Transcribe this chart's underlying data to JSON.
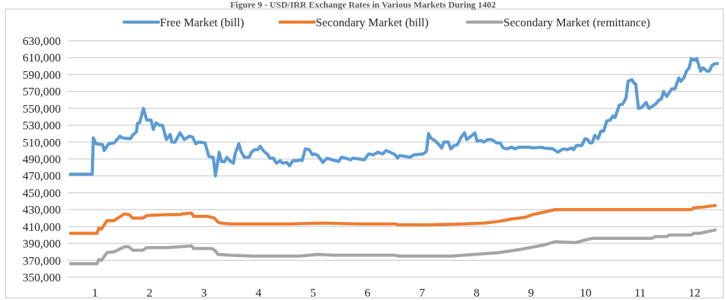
{
  "chart_data": {
    "type": "line",
    "title": "Figure 9 - USD/IRR Exchange Rates in Various Markets During 1402",
    "legend": "top",
    "grid": "y",
    "xlim": [
      0.5,
      12.5
    ],
    "xticks": [
      1,
      2,
      3,
      4,
      5,
      6,
      7,
      8,
      9,
      10,
      11,
      12
    ],
    "ylim": [
      350000,
      630000
    ],
    "yticks": [
      {
        "value": 350000,
        "label": "350,000"
      },
      {
        "value": 370000,
        "label": "370,000"
      },
      {
        "value": 390000,
        "label": "390,000"
      },
      {
        "value": 410000,
        "label": "410,000"
      },
      {
        "value": 430000,
        "label": "430,000"
      },
      {
        "value": 450000,
        "label": "450,000"
      },
      {
        "value": 470000,
        "label": "470,000"
      },
      {
        "value": 490000,
        "label": "490,000"
      },
      {
        "value": 510000,
        "label": "510,000"
      },
      {
        "value": 530000,
        "label": "530,000"
      },
      {
        "value": 550000,
        "label": "550,000"
      },
      {
        "value": 570000,
        "label": "570,000"
      },
      {
        "value": 590000,
        "label": "590,000"
      },
      {
        "value": 610000,
        "label": "610,000"
      },
      {
        "value": 630000,
        "label": "630,000"
      }
    ],
    "series": [
      {
        "name": "Free Market (bill)",
        "color": "#5b9bd5",
        "x": [
          0.55,
          0.95,
          0.97,
          1.02,
          1.14,
          1.17,
          1.25,
          1.35,
          1.46,
          1.5,
          1.65,
          1.69,
          1.76,
          1.78,
          1.82,
          1.89,
          1.95,
          2.03,
          2.07,
          2.12,
          2.18,
          2.24,
          2.31,
          2.38,
          2.41,
          2.47,
          2.56,
          2.64,
          2.73,
          2.79,
          2.85,
          2.9,
          3.02,
          3.09,
          3.17,
          3.21,
          3.28,
          3.32,
          3.38,
          3.42,
          3.49,
          3.54,
          3.57,
          3.64,
          3.68,
          3.74,
          3.83,
          3.87,
          3.93,
          3.99,
          4.03,
          4.1,
          4.16,
          4.21,
          4.27,
          4.33,
          4.4,
          4.44,
          4.52,
          4.57,
          4.63,
          4.71,
          4.78,
          4.8,
          4.86,
          4.93,
          4.99,
          5.03,
          5.09,
          5.18,
          5.26,
          5.35,
          5.47,
          5.52,
          5.6,
          5.69,
          5.73,
          5.85,
          5.94,
          6.02,
          6.11,
          6.19,
          6.28,
          6.34,
          6.42,
          6.51,
          6.55,
          6.59,
          6.7,
          6.78,
          6.85,
          7.02,
          7.08,
          7.12,
          7.16,
          7.25,
          7.31,
          7.36,
          7.4,
          7.48,
          7.53,
          7.59,
          7.65,
          7.71,
          7.78,
          7.82,
          7.9,
          7.97,
          8.01,
          8.07,
          8.14,
          8.2,
          8.28,
          8.37,
          8.43,
          8.49,
          8.56,
          8.64,
          8.71,
          8.77,
          8.98,
          9.02,
          9.19,
          9.23,
          9.4,
          9.49,
          9.59,
          9.66,
          9.74,
          9.78,
          9.83,
          9.93,
          9.99,
          10.04,
          10.08,
          10.12,
          10.17,
          10.23,
          10.28,
          10.33,
          10.39,
          10.45,
          10.5,
          10.54,
          10.62,
          10.68,
          10.74,
          10.78,
          10.85,
          10.9,
          10.92,
          10.97,
          11.03,
          11.11,
          11.16,
          11.24,
          11.3,
          11.35,
          11.39,
          11.43,
          11.49,
          11.58,
          11.64,
          11.71,
          11.75,
          11.81,
          11.85,
          11.9,
          11.94,
          11.99,
          12.04,
          12.11,
          12.15,
          12.23,
          12.27,
          12.32,
          12.38,
          12.42
        ],
        "values": [
          472000,
          472000,
          515000,
          508000,
          507000,
          500000,
          508000,
          509000,
          517000,
          515000,
          514000,
          518000,
          522000,
          532000,
          533000,
          550000,
          536000,
          536000,
          525000,
          533000,
          530000,
          530000,
          513000,
          519000,
          510000,
          510000,
          521000,
          513000,
          517000,
          516000,
          508000,
          510000,
          509000,
          493000,
          492000,
          470000,
          498000,
          487000,
          487000,
          492000,
          487000,
          485000,
          496000,
          508000,
          499000,
          492000,
          492000,
          498000,
          501000,
          501000,
          505000,
          499000,
          496000,
          491000,
          491000,
          485000,
          488000,
          485000,
          486000,
          482000,
          488000,
          488000,
          489000,
          488000,
          502000,
          501000,
          495000,
          496000,
          494000,
          486000,
          491000,
          489000,
          487000,
          492000,
          491000,
          489000,
          491000,
          490000,
          489000,
          496000,
          495000,
          498000,
          496000,
          500000,
          498000,
          495000,
          491000,
          494000,
          493000,
          492000,
          495000,
          496000,
          499000,
          520000,
          515000,
          511000,
          507000,
          503000,
          510000,
          510000,
          502000,
          506000,
          507000,
          515000,
          521000,
          513000,
          517000,
          521000,
          511000,
          512000,
          510000,
          513000,
          513000,
          509000,
          509000,
          503000,
          502000,
          504000,
          502000,
          504000,
          504000,
          503000,
          504000,
          503000,
          502000,
          498000,
          502000,
          501000,
          503000,
          501000,
          506000,
          506000,
          514000,
          513000,
          509000,
          509000,
          518000,
          514000,
          523000,
          523000,
          535000,
          536000,
          541000,
          539000,
          554000,
          555000,
          562000,
          582000,
          584000,
          579000,
          579000,
          550000,
          551000,
          557000,
          550000,
          553000,
          556000,
          560000,
          561000,
          570000,
          564000,
          573000,
          573000,
          586000,
          582000,
          587000,
          594000,
          598000,
          609000,
          607000,
          609000,
          594000,
          598000,
          594000,
          594000,
          601000,
          603000,
          603000
        ]
      },
      {
        "name": "Secondary Market (bill)",
        "color": "#ed7d31",
        "x": [
          0.55,
          1.04,
          1.07,
          1.12,
          1.22,
          1.35,
          1.54,
          1.63,
          1.69,
          1.88,
          1.95,
          2.31,
          2.56,
          2.6,
          2.77,
          2.81,
          3.07,
          3.19,
          3.26,
          3.32,
          3.48,
          3.7,
          4.55,
          5.18,
          5.85,
          6.51,
          6.57,
          7.12,
          7.75,
          8.14,
          8.4,
          8.65,
          8.9,
          9.02,
          9.23,
          9.44,
          9.57,
          11.94,
          11.98,
          12.15,
          12.38
        ],
        "values": [
          402000,
          402000,
          408000,
          407000,
          417000,
          417000,
          425000,
          424000,
          420000,
          420000,
          423000,
          424000,
          424000,
          425000,
          426000,
          422000,
          422000,
          420000,
          415000,
          414000,
          413000,
          413000,
          413000,
          414000,
          413000,
          413000,
          412000,
          412000,
          413000,
          414000,
          416000,
          419000,
          421000,
          424000,
          427000,
          430000,
          430000,
          430000,
          432000,
          433000,
          435000
        ]
      },
      {
        "name": "Secondary Market (remittance)",
        "color": "#a5a5a5",
        "x": [
          0.55,
          1.04,
          1.07,
          1.12,
          1.22,
          1.35,
          1.54,
          1.62,
          1.69,
          1.88,
          1.95,
          2.31,
          2.56,
          2.77,
          2.81,
          3.15,
          3.21,
          3.26,
          3.48,
          3.91,
          4.76,
          5.09,
          5.39,
          5.85,
          6.51,
          6.57,
          7.54,
          7.97,
          8.4,
          8.81,
          9.23,
          9.44,
          9.82,
          9.99,
          10.12,
          11.22,
          11.28,
          11.49,
          11.53,
          11.94,
          11.98,
          12.1,
          12.38
        ],
        "values": [
          366000,
          366000,
          371000,
          370000,
          379000,
          380000,
          386000,
          386000,
          382000,
          382000,
          385000,
          385000,
          386000,
          387000,
          384000,
          384000,
          381000,
          377000,
          376000,
          375000,
          375000,
          377000,
          376000,
          376000,
          376000,
          375000,
          375000,
          377000,
          379000,
          383000,
          388000,
          392000,
          391000,
          394000,
          396000,
          396000,
          398000,
          398000,
          400000,
          400000,
          402000,
          402000,
          406000
        ]
      }
    ]
  }
}
